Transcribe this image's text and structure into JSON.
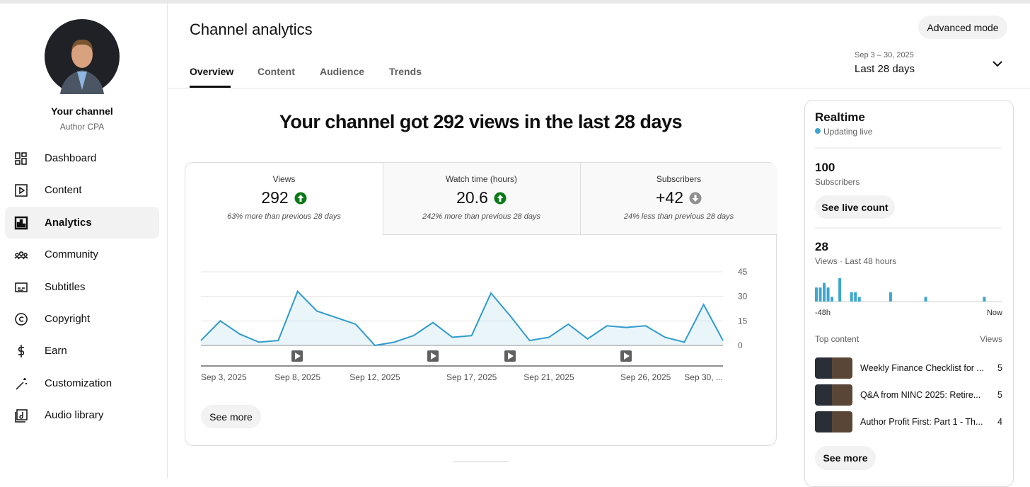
{
  "sidebar": {
    "channel_title": "Your channel",
    "channel_name": "Author CPA",
    "nav": [
      "Dashboard",
      "Content",
      "Analytics",
      "Community",
      "Subtitles",
      "Copyright",
      "Earn",
      "Customization",
      "Audio library"
    ]
  },
  "header": {
    "title": "Channel analytics",
    "advanced_mode": "Advanced mode",
    "tabs": [
      "Overview",
      "Content",
      "Audience",
      "Trends"
    ],
    "date_range": "Sep 3 – 30, 2025",
    "period": "Last 28 days"
  },
  "headline": "Your channel got 292 views in the last 28 days",
  "metrics": [
    {
      "label": "Views",
      "value": 292,
      "trend": "up",
      "note": "63% more than previous 28 days"
    },
    {
      "label": "Watch time (hours)",
      "value": 20.6,
      "trend": "up",
      "note": "242% more than previous 28 days"
    },
    {
      "label": "Subscribers",
      "value": "+42",
      "trend": "down",
      "note": "24% less than previous 28 days"
    }
  ],
  "chart": {
    "type": "line",
    "color": "#2f9bcb",
    "categories": [
      "Sep 3, 2025",
      null,
      null,
      null,
      null,
      "Sep 8, 2025",
      null,
      null,
      null,
      "Sep 12, 2025",
      null,
      null,
      null,
      null,
      "Sep 17, 2025",
      null,
      null,
      null,
      "Sep 21, 2025",
      null,
      null,
      null,
      null,
      "Sep 26, 2025",
      null,
      null,
      null,
      "Sep 30, ..."
    ],
    "values": [
      3,
      15,
      7,
      2,
      3,
      33,
      21,
      17,
      13,
      0,
      2,
      6,
      14,
      5,
      6,
      32,
      18,
      3,
      5,
      13,
      4,
      12,
      11,
      12,
      5,
      2,
      25,
      3
    ],
    "ylim": [
      0,
      45
    ],
    "yticks": [
      0,
      15,
      30,
      45
    ],
    "grid": true
  },
  "see_more": "See more",
  "realtime": {
    "title": "Realtime",
    "status": "Updating live",
    "subscribers": 100,
    "subscribers_label": "Subscribers",
    "live_count": "See live count",
    "views": 28,
    "views_label": "Views · Last 48 hours",
    "hourly_views": [
      3,
      3,
      4,
      3,
      1,
      0,
      5,
      0,
      0,
      2,
      2,
      1,
      0,
      0,
      0,
      0,
      0,
      0,
      0,
      2,
      0,
      0,
      0,
      0,
      0,
      0,
      0,
      0,
      1,
      0,
      0,
      0,
      0,
      0,
      0,
      0,
      0,
      0,
      0,
      0,
      0,
      0,
      0,
      1,
      0,
      0,
      0,
      0
    ],
    "start_label": "-48h",
    "end_label": "Now",
    "top_content_label": "Top content",
    "views_header": "Views",
    "top_content": [
      {
        "title": "Weekly Finance Checklist for ...",
        "views": 5
      },
      {
        "title": "Q&A from NINC 2025: Retire...",
        "views": 5
      },
      {
        "title": "Author Profit First: Part 1 - Th...",
        "views": 4
      }
    ],
    "see_more": "See more"
  }
}
